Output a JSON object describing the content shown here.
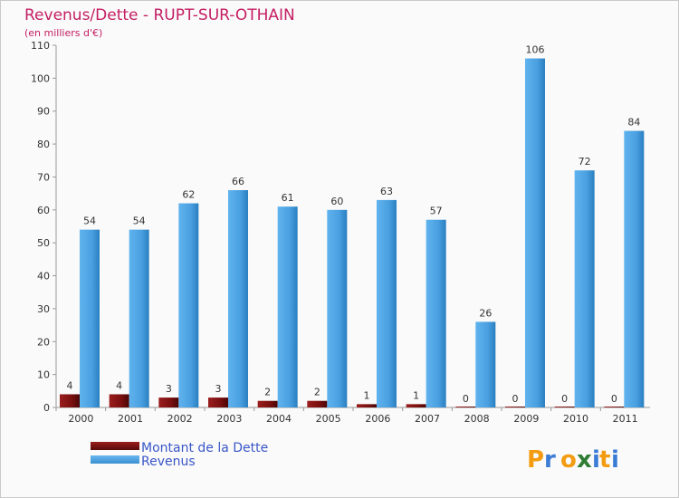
{
  "chart_data": {
    "type": "bar",
    "title": "Revenus/Dette - RUPT-SUR-OTHAIN",
    "subtitle": "(en milliers d'€)",
    "categories": [
      "2000",
      "2001",
      "2002",
      "2003",
      "2004",
      "2005",
      "2006",
      "2007",
      "2008",
      "2009",
      "2010",
      "2011"
    ],
    "series": [
      {
        "name": "Montant de la Dette",
        "color": "#7a0f0f",
        "values": [
          4,
          4,
          3,
          3,
          2,
          2,
          1,
          1,
          0,
          0,
          0,
          0
        ]
      },
      {
        "name": "Revenus",
        "color": "#4aa0e0",
        "values": [
          54,
          54,
          62,
          66,
          61,
          60,
          63,
          57,
          26,
          106,
          72,
          84
        ]
      }
    ],
    "ylim": [
      0,
      110
    ],
    "yticks": [
      0,
      10,
      20,
      30,
      40,
      50,
      60,
      70,
      80,
      90,
      100,
      110
    ],
    "grid": false,
    "legend": "bottom-left"
  },
  "logo": {
    "letters": [
      "P",
      "r",
      "o",
      "x",
      "i",
      "t",
      "i"
    ],
    "colors": [
      "#f39c12",
      "#3a7bd5",
      "#f39c12",
      "#2e7d32",
      "#3a7bd5",
      "#f39c12",
      "#3a7bd5"
    ]
  }
}
